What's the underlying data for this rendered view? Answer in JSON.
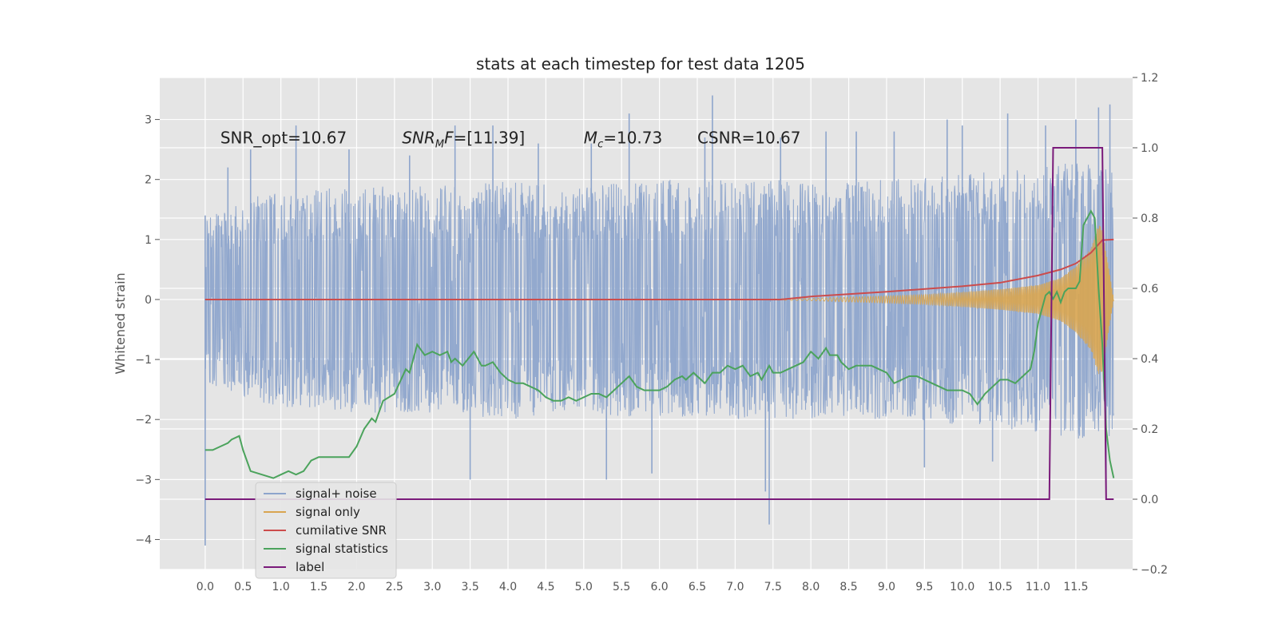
{
  "chart_data": {
    "type": "line",
    "title": "stats at each timestep for test data 1205",
    "xlabel": "",
    "ylabel": "Whitened strain",
    "xlim": [
      -0.6,
      12.25
    ],
    "ylim": [
      -4.5,
      3.7
    ],
    "y2lim": [
      -0.2,
      1.2
    ],
    "grid": true,
    "legend_position": "lower-left",
    "x_ticks": [
      "0.0",
      "0.5",
      "1.0",
      "1.5",
      "2.0",
      "2.5",
      "3.0",
      "3.5",
      "4.0",
      "4.5",
      "5.0",
      "5.5",
      "6.0",
      "6.5",
      "7.0",
      "7.5",
      "8.0",
      "8.5",
      "9.0",
      "9.5",
      "10.0",
      "10.5",
      "11.0",
      "11.5"
    ],
    "y_ticks": [
      "3",
      "2",
      "1",
      "0",
      "−1",
      "−2",
      "−3",
      "−4"
    ],
    "y2_ticks": [
      "1.2",
      "1.0",
      "0.8",
      "0.6",
      "0.4",
      "0.2",
      "0.0",
      "−0.2"
    ],
    "annotations": [
      {
        "text": "SNR_opt=10.67",
        "x": 0.2,
        "y": 2.6
      },
      {
        "html": "<tspan font-style='italic'>SNR</tspan><tspan font-style='italic' font-size='13' dy='5'>M</tspan><tspan font-style='italic' dy='-5'>F</tspan><tspan>=[11.39]</tspan>",
        "x": 2.6,
        "y": 2.6
      },
      {
        "html": "<tspan font-style='italic'>M</tspan><tspan font-style='italic' font-size='13' dy='5'>c</tspan><tspan dy='-5'>=10.73</tspan>",
        "x": 5.0,
        "y": 2.6
      },
      {
        "text": "CSNR=10.67",
        "x": 6.5,
        "y": 2.6
      }
    ],
    "series": [
      {
        "name": "signal+ noise",
        "axis": "left",
        "color": "#8ea5cc",
        "style": "dense noise trace",
        "x_range": [
          0.0,
          12.0
        ],
        "envelope_upper": [
          [
            0.0,
            1.3
          ],
          [
            0.5,
            1.6
          ],
          [
            1.0,
            1.7
          ],
          [
            2.0,
            1.8
          ],
          [
            3.0,
            1.8
          ],
          [
            4.0,
            1.9
          ],
          [
            5.0,
            1.8
          ],
          [
            6.0,
            1.9
          ],
          [
            7.0,
            1.9
          ],
          [
            8.0,
            1.9
          ],
          [
            9.0,
            1.9
          ],
          [
            10.0,
            2.0
          ],
          [
            11.0,
            2.1
          ],
          [
            12.0,
            2.3
          ]
        ],
        "envelope_lower": [
          [
            0.0,
            -1.3
          ],
          [
            0.5,
            -1.6
          ],
          [
            1.0,
            -1.7
          ],
          [
            2.0,
            -1.8
          ],
          [
            3.0,
            -1.8
          ],
          [
            4.0,
            -1.9
          ],
          [
            5.0,
            -1.8
          ],
          [
            6.0,
            -1.9
          ],
          [
            7.0,
            -1.9
          ],
          [
            8.0,
            -1.9
          ],
          [
            9.0,
            -1.9
          ],
          [
            10.0,
            -2.0
          ],
          [
            11.0,
            -2.1
          ],
          [
            12.0,
            -2.3
          ]
        ],
        "spikes": [
          [
            0.0,
            -4.1
          ],
          [
            0.0,
            1.4
          ],
          [
            0.3,
            2.2
          ],
          [
            0.6,
            2.5
          ],
          [
            1.2,
            2.9
          ],
          [
            1.9,
            2.5
          ],
          [
            2.7,
            2.4
          ],
          [
            3.3,
            2.9
          ],
          [
            3.5,
            -3.0
          ],
          [
            3.8,
            2.9
          ],
          [
            4.4,
            2.6
          ],
          [
            5.1,
            2.6
          ],
          [
            5.3,
            -3.0
          ],
          [
            5.6,
            3.1
          ],
          [
            5.9,
            -2.9
          ],
          [
            6.6,
            2.7
          ],
          [
            6.7,
            3.4
          ],
          [
            7.4,
            -3.2
          ],
          [
            7.45,
            -3.75
          ],
          [
            7.6,
            2.7
          ],
          [
            8.2,
            2.8
          ],
          [
            8.6,
            2.8
          ],
          [
            9.1,
            2.8
          ],
          [
            9.5,
            -2.8
          ],
          [
            9.8,
            3.0
          ],
          [
            10.0,
            2.9
          ],
          [
            10.4,
            -2.7
          ],
          [
            10.6,
            3.1
          ],
          [
            11.1,
            2.9
          ],
          [
            11.5,
            3.0
          ],
          [
            11.8,
            3.2
          ],
          [
            11.95,
            3.25
          ],
          [
            11.9,
            -3.3
          ]
        ]
      },
      {
        "name": "signal only",
        "axis": "left",
        "color": "#d9a550",
        "style": "oscillating chirp, growing amplitude",
        "envelope": [
          [
            0.0,
            0.0
          ],
          [
            7.6,
            0.01
          ],
          [
            8.0,
            0.02
          ],
          [
            8.5,
            0.04
          ],
          [
            9.0,
            0.06
          ],
          [
            9.5,
            0.08
          ],
          [
            10.0,
            0.12
          ],
          [
            10.5,
            0.17
          ],
          [
            11.0,
            0.24
          ],
          [
            11.3,
            0.36
          ],
          [
            11.5,
            0.55
          ],
          [
            11.7,
            0.85
          ],
          [
            11.8,
            1.25
          ],
          [
            11.85,
            1.2
          ],
          [
            12.0,
            0.0
          ]
        ]
      },
      {
        "name": "cumilative SNR",
        "axis": "left",
        "color": "#cc4c4c",
        "points": [
          [
            0.0,
            0.0
          ],
          [
            6.0,
            0.0
          ],
          [
            7.6,
            0.0
          ],
          [
            8.0,
            0.05
          ],
          [
            9.0,
            0.13
          ],
          [
            10.0,
            0.22
          ],
          [
            10.5,
            0.28
          ],
          [
            11.0,
            0.4
          ],
          [
            11.3,
            0.5
          ],
          [
            11.5,
            0.6
          ],
          [
            11.7,
            0.78
          ],
          [
            11.85,
            0.99
          ],
          [
            12.0,
            1.0
          ]
        ]
      },
      {
        "name": "signal statistics",
        "axis": "right",
        "color": "#4ba35c",
        "points": [
          [
            0.0,
            0.14
          ],
          [
            0.05,
            0.14
          ],
          [
            0.1,
            0.14
          ],
          [
            0.2,
            0.15
          ],
          [
            0.3,
            0.16
          ],
          [
            0.35,
            0.17
          ],
          [
            0.45,
            0.18
          ],
          [
            0.5,
            0.14
          ],
          [
            0.6,
            0.08
          ],
          [
            0.75,
            0.07
          ],
          [
            0.9,
            0.06
          ],
          [
            1.0,
            0.07
          ],
          [
            1.1,
            0.08
          ],
          [
            1.2,
            0.07
          ],
          [
            1.3,
            0.08
          ],
          [
            1.4,
            0.11
          ],
          [
            1.5,
            0.12
          ],
          [
            1.6,
            0.12
          ],
          [
            1.7,
            0.12
          ],
          [
            1.8,
            0.12
          ],
          [
            1.9,
            0.12
          ],
          [
            2.0,
            0.15
          ],
          [
            2.1,
            0.2
          ],
          [
            2.2,
            0.23
          ],
          [
            2.25,
            0.22
          ],
          [
            2.35,
            0.28
          ],
          [
            2.5,
            0.3
          ],
          [
            2.65,
            0.37
          ],
          [
            2.7,
            0.36
          ],
          [
            2.8,
            0.44
          ],
          [
            2.9,
            0.41
          ],
          [
            3.0,
            0.42
          ],
          [
            3.1,
            0.41
          ],
          [
            3.2,
            0.42
          ],
          [
            3.25,
            0.39
          ],
          [
            3.3,
            0.4
          ],
          [
            3.4,
            0.38
          ],
          [
            3.55,
            0.42
          ],
          [
            3.65,
            0.38
          ],
          [
            3.7,
            0.38
          ],
          [
            3.8,
            0.39
          ],
          [
            3.9,
            0.36
          ],
          [
            4.0,
            0.34
          ],
          [
            4.1,
            0.33
          ],
          [
            4.2,
            0.33
          ],
          [
            4.3,
            0.32
          ],
          [
            4.4,
            0.31
          ],
          [
            4.5,
            0.29
          ],
          [
            4.6,
            0.28
          ],
          [
            4.7,
            0.28
          ],
          [
            4.8,
            0.29
          ],
          [
            4.9,
            0.28
          ],
          [
            5.0,
            0.29
          ],
          [
            5.1,
            0.3
          ],
          [
            5.2,
            0.3
          ],
          [
            5.3,
            0.29
          ],
          [
            5.4,
            0.31
          ],
          [
            5.5,
            0.33
          ],
          [
            5.6,
            0.35
          ],
          [
            5.7,
            0.32
          ],
          [
            5.8,
            0.31
          ],
          [
            5.9,
            0.31
          ],
          [
            6.0,
            0.31
          ],
          [
            6.1,
            0.32
          ],
          [
            6.2,
            0.34
          ],
          [
            6.3,
            0.35
          ],
          [
            6.35,
            0.34
          ],
          [
            6.45,
            0.36
          ],
          [
            6.55,
            0.34
          ],
          [
            6.6,
            0.33
          ],
          [
            6.7,
            0.36
          ],
          [
            6.8,
            0.36
          ],
          [
            6.9,
            0.38
          ],
          [
            7.0,
            0.37
          ],
          [
            7.1,
            0.38
          ],
          [
            7.2,
            0.35
          ],
          [
            7.3,
            0.36
          ],
          [
            7.35,
            0.34
          ],
          [
            7.45,
            0.38
          ],
          [
            7.5,
            0.36
          ],
          [
            7.6,
            0.36
          ],
          [
            7.7,
            0.37
          ],
          [
            7.8,
            0.38
          ],
          [
            7.9,
            0.39
          ],
          [
            8.0,
            0.42
          ],
          [
            8.1,
            0.4
          ],
          [
            8.2,
            0.43
          ],
          [
            8.25,
            0.41
          ],
          [
            8.35,
            0.41
          ],
          [
            8.4,
            0.39
          ],
          [
            8.5,
            0.37
          ],
          [
            8.6,
            0.38
          ],
          [
            8.7,
            0.38
          ],
          [
            8.8,
            0.38
          ],
          [
            8.9,
            0.37
          ],
          [
            9.0,
            0.36
          ],
          [
            9.1,
            0.33
          ],
          [
            9.2,
            0.34
          ],
          [
            9.3,
            0.35
          ],
          [
            9.4,
            0.35
          ],
          [
            9.5,
            0.34
          ],
          [
            9.6,
            0.33
          ],
          [
            9.7,
            0.32
          ],
          [
            9.8,
            0.31
          ],
          [
            9.9,
            0.31
          ],
          [
            10.0,
            0.31
          ],
          [
            10.1,
            0.3
          ],
          [
            10.2,
            0.27
          ],
          [
            10.3,
            0.3
          ],
          [
            10.4,
            0.32
          ],
          [
            10.5,
            0.34
          ],
          [
            10.6,
            0.34
          ],
          [
            10.7,
            0.33
          ],
          [
            10.8,
            0.35
          ],
          [
            10.9,
            0.37
          ],
          [
            10.95,
            0.42
          ],
          [
            11.0,
            0.5
          ],
          [
            11.05,
            0.54
          ],
          [
            11.1,
            0.58
          ],
          [
            11.15,
            0.59
          ],
          [
            11.2,
            0.57
          ],
          [
            11.25,
            0.59
          ],
          [
            11.3,
            0.56
          ],
          [
            11.35,
            0.59
          ],
          [
            11.4,
            0.6
          ],
          [
            11.45,
            0.6
          ],
          [
            11.5,
            0.6
          ],
          [
            11.55,
            0.62
          ],
          [
            11.6,
            0.78
          ],
          [
            11.7,
            0.82
          ],
          [
            11.75,
            0.8
          ],
          [
            11.8,
            0.6
          ],
          [
            11.85,
            0.44
          ],
          [
            11.9,
            0.2
          ],
          [
            11.95,
            0.11
          ],
          [
            12.0,
            0.06
          ]
        ]
      },
      {
        "name": "label",
        "axis": "right",
        "color": "#7a1a7a",
        "points": [
          [
            0.0,
            0.0
          ],
          [
            11.15,
            0.0
          ],
          [
            11.2,
            1.0
          ],
          [
            11.85,
            1.0
          ],
          [
            11.9,
            0.0
          ],
          [
            12.0,
            0.0
          ]
        ]
      }
    ]
  }
}
